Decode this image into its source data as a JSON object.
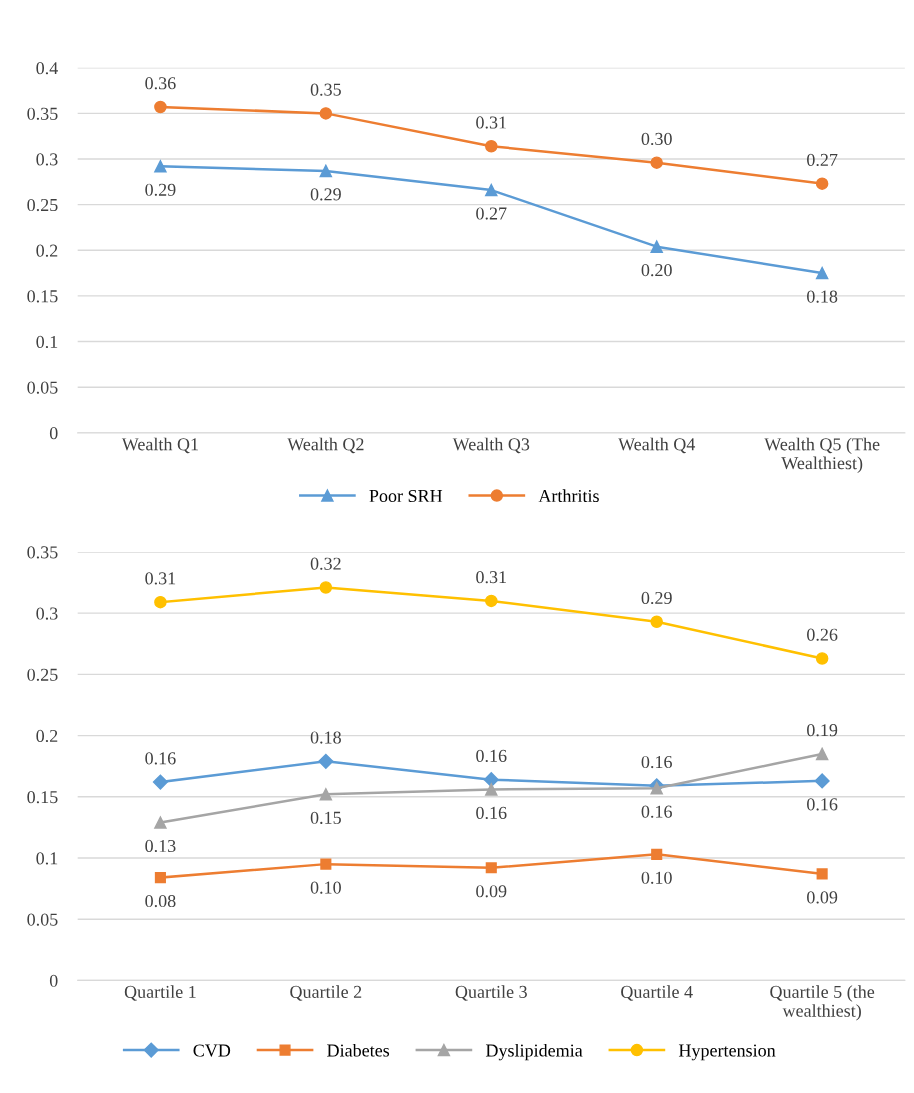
{
  "chart_data": [
    {
      "type": "line",
      "categories": [
        "Wealth Q1",
        "Wealth Q2",
        "Wealth Q3",
        "Wealth Q4",
        "Wealth Q5 (The Wealthiest)"
      ],
      "series": [
        {
          "name": "Poor SRH",
          "color": "#5b9bd5",
          "marker": "triangle",
          "values": [
            0.292,
            0.287,
            0.266,
            0.204,
            0.175
          ],
          "value_labels": [
            "0.29",
            "0.29",
            "0.27",
            "0.20",
            "0.18"
          ]
        },
        {
          "name": "Arthritis",
          "color": "#ed7d31",
          "marker": "circle",
          "values": [
            0.357,
            0.35,
            0.314,
            0.296,
            0.273
          ],
          "value_labels": [
            "0.36",
            "0.35",
            "0.31",
            "0.30",
            "0.27"
          ]
        }
      ],
      "ylim": [
        0,
        0.4
      ],
      "yticks": [
        0,
        0.05,
        0.1,
        0.15,
        0.2,
        0.25,
        0.3,
        0.35,
        0.4
      ],
      "grid": "y",
      "legend": "bottom"
    },
    {
      "type": "line",
      "categories": [
        "Quartile 1",
        "Quartile 2",
        "Quartile 3",
        "Quartile 4",
        "Quartile 5 (the wealthiest)"
      ],
      "series": [
        {
          "name": "CVD",
          "color": "#5b9bd5",
          "marker": "diamond",
          "values": [
            0.162,
            0.179,
            0.164,
            0.159,
            0.163
          ],
          "value_labels": [
            "0.16",
            "0.18",
            "0.16",
            "0.16",
            "0.16"
          ]
        },
        {
          "name": "Diabetes",
          "color": "#ed7d31",
          "marker": "square",
          "values": [
            0.084,
            0.095,
            0.092,
            0.103,
            0.087
          ],
          "value_labels": [
            "0.08",
            "0.10",
            "0.09",
            "0.10",
            "0.09"
          ]
        },
        {
          "name": "Dyslipidemia",
          "color": "#a5a5a5",
          "marker": "triangle",
          "values": [
            0.129,
            0.152,
            0.156,
            0.157,
            0.185
          ],
          "value_labels": [
            "0.13",
            "0.15",
            "0.16",
            "0.16",
            "0.19"
          ]
        },
        {
          "name": "Hypertension",
          "color": "#ffc000",
          "marker": "circle",
          "values": [
            0.309,
            0.321,
            0.31,
            0.293,
            0.263
          ],
          "value_labels": [
            "0.31",
            "0.32",
            "0.31",
            "0.29",
            "0.26"
          ]
        }
      ],
      "ylim": [
        0,
        0.35
      ],
      "yticks": [
        0,
        0.05,
        0.1,
        0.15,
        0.2,
        0.25,
        0.3,
        0.35
      ],
      "grid": "y",
      "legend": "bottom"
    }
  ]
}
